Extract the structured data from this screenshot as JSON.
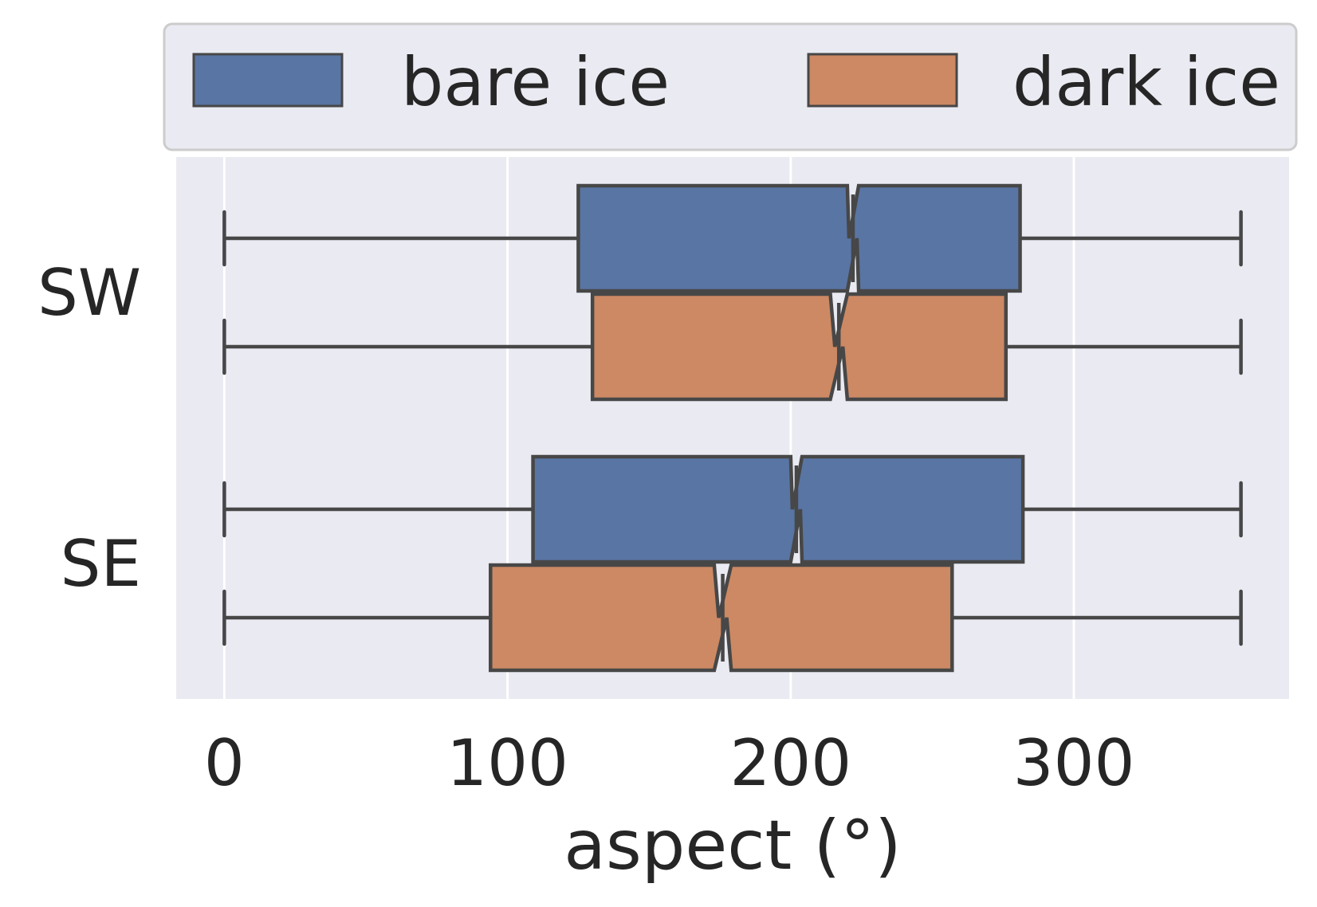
{
  "chart_data": {
    "type": "boxplot",
    "orientation": "horizontal",
    "notched": true,
    "title": "",
    "xlabel": "aspect (°)",
    "ylabel": "",
    "xlim": [
      -17,
      376
    ],
    "xticks": [
      0,
      100,
      200,
      300
    ],
    "categories": [
      "SW",
      "SE"
    ],
    "grid": true,
    "legend_position": "top",
    "series": [
      {
        "name": "bare ice",
        "color": "#5975a4",
        "boxes": [
          {
            "category": "SW",
            "whislo": 0,
            "q1": 125,
            "med": 222,
            "q3": 281,
            "whishi": 359,
            "notch_low": 220,
            "notch_high": 224
          },
          {
            "category": "SE",
            "whislo": 0,
            "q1": 109,
            "med": 202,
            "q3": 282,
            "whishi": 359,
            "notch_low": 200,
            "notch_high": 204
          }
        ]
      },
      {
        "name": "dark ice",
        "color": "#cc8963",
        "boxes": [
          {
            "category": "SW",
            "whislo": 0,
            "q1": 130,
            "med": 217,
            "q3": 276,
            "whishi": 359,
            "notch_low": 214,
            "notch_high": 220
          },
          {
            "category": "SE",
            "whislo": 0,
            "q1": 94,
            "med": 176,
            "q3": 257,
            "whishi": 359,
            "notch_low": 173,
            "notch_high": 179
          }
        ]
      }
    ]
  }
}
